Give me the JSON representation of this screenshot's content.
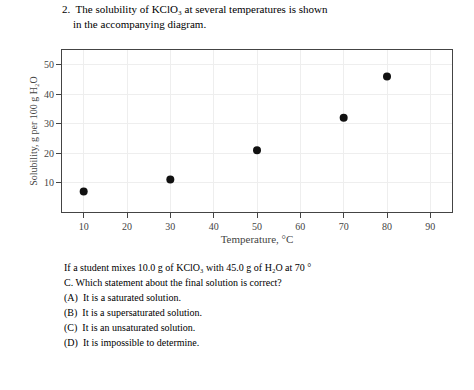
{
  "chart_data": {
    "type": "scatter",
    "title": [
      "2.  The solubility of KClO₃ at several temperatures is shown",
      "    in the accompanying diagram."
    ],
    "x_label": "Temperature, °C",
    "y_label": "Solubility, g per 100 g H₂O",
    "x": [
      10,
      30,
      50,
      70,
      80
    ],
    "values": [
      7,
      11,
      21,
      32,
      46
    ],
    "xlim": [
      5,
      95
    ],
    "ylim": [
      0,
      55
    ],
    "xticks": [
      10,
      20,
      30,
      40,
      50,
      60,
      70,
      80,
      90
    ],
    "yticks": [
      10,
      20,
      30,
      40,
      50
    ],
    "grid": true,
    "color": "#111111",
    "annotations": [
      "If a student mixes 10.0 g of KClO₃ with 45.0 g of H₂O at 70 °",
      "C. Which statement about the final solution is correct?",
      "(A)  It is a saturated solution.",
      "(B)  It is a supersaturated solution.",
      "(C)  It is an unsaturated solution.",
      "(D)  It is impossible to determine."
    ]
  }
}
